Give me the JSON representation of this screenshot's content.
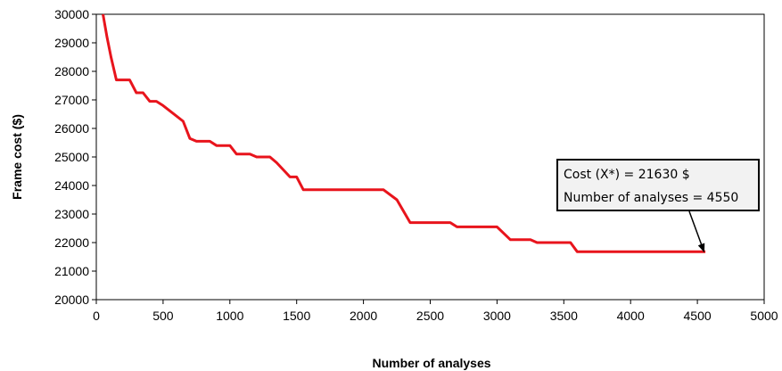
{
  "chart_data": {
    "type": "line",
    "title": "",
    "xlabel": "Number of analyses",
    "ylabel": "Frame cost ($)",
    "xlim": [
      0,
      5000
    ],
    "ylim": [
      20000,
      30000
    ],
    "x_ticks": [
      0,
      500,
      1000,
      1500,
      2000,
      2500,
      3000,
      3500,
      4000,
      4500,
      5000
    ],
    "y_ticks": [
      20000,
      21000,
      22000,
      23000,
      24000,
      25000,
      26000,
      27000,
      28000,
      29000,
      30000
    ],
    "x_tick_labels": [
      "0",
      "500",
      "1000",
      "1500",
      "2000",
      "2500",
      "3000",
      "3500",
      "4000",
      "4500",
      "5000"
    ],
    "y_tick_labels": [
      "20000",
      "21000",
      "22000",
      "23000",
      "24000",
      "25000",
      "26000",
      "27000",
      "28000",
      "29000",
      "30000"
    ],
    "grid": false,
    "legend": "none",
    "series": [
      {
        "color": "#e8141c",
        "x": [
          50,
          80,
          110,
          150,
          250,
          300,
          350,
          400,
          450,
          500,
          650,
          700,
          750,
          850,
          900,
          1000,
          1050,
          1150,
          1200,
          1300,
          1350,
          1450,
          1500,
          1550,
          2150,
          2250,
          2350,
          2650,
          2700,
          3000,
          3100,
          3250,
          3300,
          3550,
          3600,
          4560
        ],
        "y": [
          30000,
          29200,
          28500,
          27700,
          27700,
          27250,
          27250,
          26950,
          26950,
          26800,
          26250,
          25650,
          25550,
          25550,
          25400,
          25400,
          25100,
          25100,
          25000,
          25000,
          24800,
          24300,
          24300,
          23850,
          23850,
          23500,
          22700,
          22700,
          22550,
          22550,
          22100,
          22100,
          22000,
          22000,
          21680,
          21680
        ]
      }
    ],
    "annotation": {
      "line1": "Cost (X*) = 21630 $",
      "line2": "Number of analyses = 4550",
      "arrow_to": [
        4550,
        21680
      ]
    }
  }
}
